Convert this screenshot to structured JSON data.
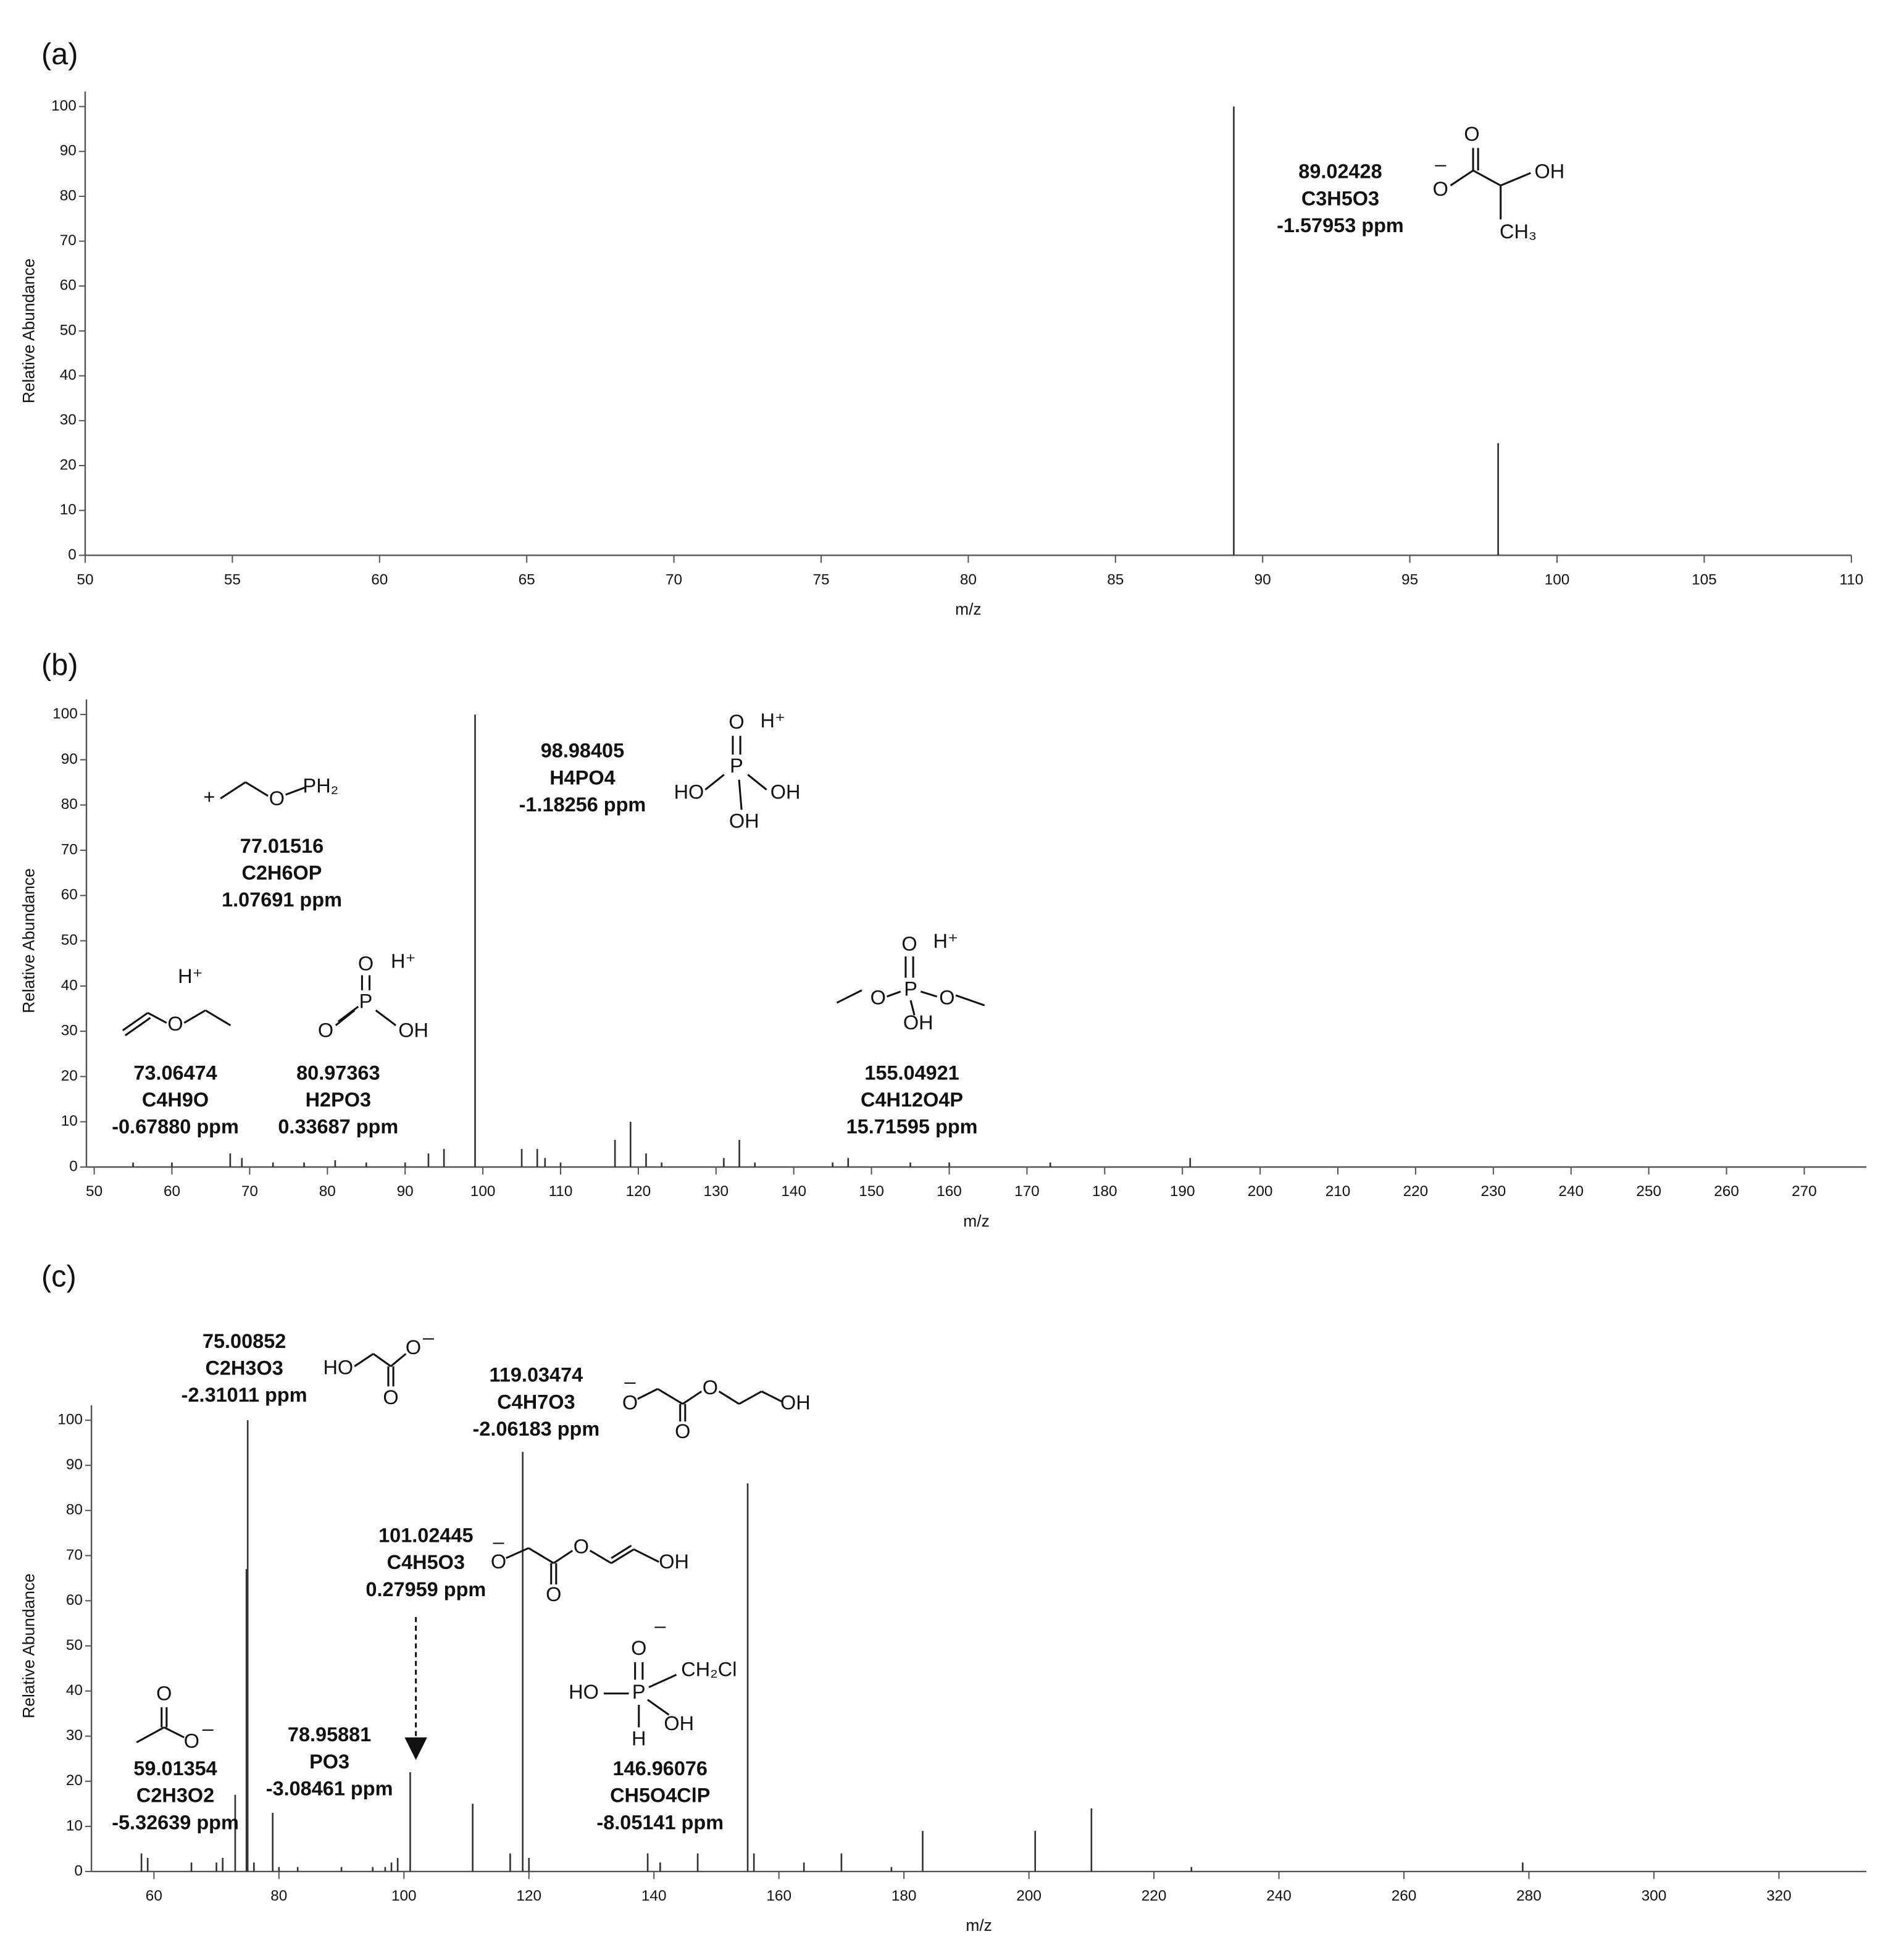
{
  "chart_data": [
    {
      "type": "stem",
      "panel": "(a)",
      "xlabel": "m/z",
      "ylabel": "Relative Abundance",
      "xlim": [
        50,
        110
      ],
      "xticks": [
        50,
        55,
        60,
        65,
        70,
        75,
        80,
        85,
        90,
        95,
        100,
        105,
        110
      ],
      "ylim": [
        0,
        100
      ],
      "yticks": [
        0,
        10,
        20,
        30,
        40,
        50,
        60,
        70,
        80,
        90,
        100
      ],
      "color": "#333333",
      "x": [
        89.02,
        98
      ],
      "values": [
        100,
        25
      ],
      "annotations": [
        {
          "text": [
            "89.02428",
            "C3H5O3",
            "-1.57953 ppm"
          ],
          "atoms": [
            "O",
            "–",
            "O",
            "OH",
            "CH₃"
          ]
        }
      ]
    },
    {
      "type": "stem",
      "panel": "(b)",
      "xlabel": "m/z",
      "ylabel": "Relative Abundance",
      "xlim": [
        49,
        278
      ],
      "xticks": [
        50,
        60,
        70,
        80,
        90,
        100,
        110,
        120,
        130,
        140,
        150,
        160,
        170,
        180,
        190,
        200,
        210,
        220,
        230,
        240,
        250,
        260,
        270
      ],
      "ylim": [
        0,
        100
      ],
      "yticks": [
        0,
        10,
        20,
        30,
        40,
        50,
        60,
        70,
        80,
        90,
        100
      ],
      "color": "#333333",
      "x": [
        55,
        60,
        67.5,
        69,
        73,
        77,
        81,
        85,
        90,
        93,
        95,
        99,
        105,
        107,
        108,
        110,
        117,
        119,
        121,
        123,
        131,
        133,
        135,
        145,
        147,
        155,
        160,
        173,
        191
      ],
      "values": [
        1,
        1,
        3,
        2,
        1,
        1,
        1.5,
        1,
        1,
        3,
        4,
        100,
        4,
        4,
        2,
        1,
        6,
        10,
        3,
        1,
        2,
        6,
        1,
        1,
        2,
        1,
        1,
        1,
        2
      ],
      "annotations": [
        {
          "text": [
            "98.98405",
            "H4PO4",
            "-1.18256 ppm"
          ],
          "atoms": [
            "O",
            "H⁺",
            "HO",
            "P",
            "OH",
            "OH"
          ]
        },
        {
          "text": [
            "77.01516",
            "C2H6OP",
            "1.07691 ppm"
          ],
          "atoms": [
            "+",
            "O",
            "PH₂"
          ]
        },
        {
          "text": [
            "73.06474",
            "C4H9O",
            "-0.67880 ppm"
          ],
          "atoms": [
            "H⁺",
            "O"
          ]
        },
        {
          "text": [
            "80.97363",
            "H2PO3",
            "0.33687 ppm"
          ],
          "atoms": [
            "O",
            "H⁺",
            "O",
            "P",
            "OH"
          ]
        },
        {
          "text": [
            "155.04921",
            "C4H12O4P",
            "15.71595 ppm"
          ],
          "atoms": [
            "O",
            "H⁺",
            "O",
            "P",
            "O",
            "OH"
          ]
        }
      ]
    },
    {
      "type": "stem",
      "panel": "(c)",
      "xlabel": "m/z",
      "ylabel": "Relative Abundance",
      "xlim": [
        50,
        334
      ],
      "xticks": [
        60,
        80,
        100,
        120,
        140,
        160,
        180,
        200,
        220,
        240,
        260,
        280,
        300,
        320
      ],
      "ylim": [
        0,
        100
      ],
      "yticks": [
        0,
        10,
        20,
        30,
        40,
        50,
        60,
        70,
        80,
        90,
        100
      ],
      "color": "#333333",
      "x": [
        58,
        59,
        66,
        70,
        71,
        73,
        74.8,
        75,
        76,
        79,
        80,
        83,
        90,
        95,
        97,
        98,
        99,
        101,
        111,
        117,
        119,
        120,
        139,
        141,
        147,
        155,
        156,
        164,
        170,
        178,
        183,
        201,
        210,
        226,
        279
      ],
      "values": [
        4,
        3,
        2,
        2,
        3,
        17,
        67,
        100,
        2,
        13,
        1,
        1,
        1,
        1,
        1,
        2,
        3,
        22,
        15,
        4,
        93,
        3,
        4,
        2,
        4,
        86,
        4,
        2,
        4,
        1,
        9,
        9,
        14,
        1,
        2
      ],
      "annotations": [
        {
          "text": [
            "75.00852",
            "C2H3O3",
            "-2.31011 ppm"
          ],
          "atoms": [
            "HO",
            "O",
            "–",
            "O"
          ]
        },
        {
          "text": [
            "119.03474",
            "C4H7O3",
            "-2.06183 ppm"
          ],
          "atoms": [
            "–",
            "O",
            "O",
            "O",
            "OH"
          ]
        },
        {
          "text": [
            "101.02445",
            "C4H5O3",
            "0.27959 ppm"
          ],
          "atoms": [
            "–",
            "O",
            "O",
            "O",
            "OH"
          ]
        },
        {
          "text": [
            "59.01354",
            "C2H3O2",
            "-5.32639 ppm"
          ],
          "atoms": [
            "O",
            "O",
            "–"
          ]
        },
        {
          "text": [
            "78.95881",
            "PO3",
            "-3.08461 ppm"
          ],
          "atoms": []
        },
        {
          "text": [
            "146.96076",
            "CH5O4ClP",
            "-8.05141 ppm"
          ],
          "atoms": [
            "O",
            "–",
            "CH₂Cl",
            "HO",
            "P",
            "OH",
            "H"
          ]
        }
      ]
    }
  ]
}
